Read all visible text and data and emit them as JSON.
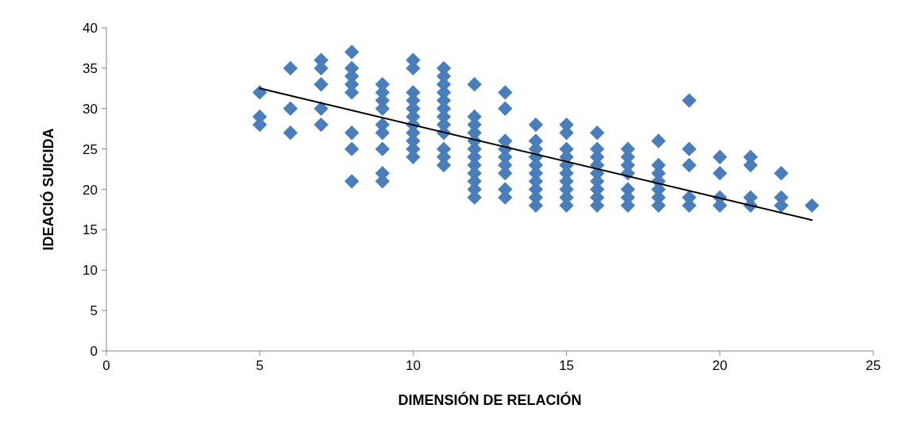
{
  "chart_data": {
    "type": "scatter",
    "xlabel": "DIMENSIÓN DE RELACIÓN",
    "ylabel": "IDEACIÓ SUICIDA",
    "xlim": [
      0,
      25
    ],
    "xticks": [
      0,
      5,
      10,
      15,
      20,
      25
    ],
    "ylim": [
      0,
      40
    ],
    "yticks": [
      0,
      5,
      10,
      15,
      20,
      25,
      30,
      35,
      40
    ],
    "grid": false,
    "marker": "diamond",
    "series": [
      {
        "color": "#4a7ebb",
        "x": [
          5,
          5,
          5,
          6,
          6,
          6,
          7,
          7,
          7,
          7,
          7,
          8,
          8,
          8,
          8,
          8,
          8,
          8,
          8,
          9,
          9,
          9,
          9,
          9,
          9,
          9,
          9,
          9,
          10,
          10,
          10,
          10,
          10,
          10,
          10,
          10,
          10,
          10,
          10,
          11,
          11,
          11,
          11,
          11,
          11,
          11,
          11,
          11,
          11,
          11,
          11,
          12,
          12,
          12,
          12,
          12,
          12,
          12,
          12,
          12,
          12,
          12,
          12,
          13,
          13,
          13,
          13,
          13,
          13,
          13,
          13,
          13,
          14,
          14,
          14,
          14,
          14,
          14,
          14,
          14,
          14,
          14,
          15,
          15,
          15,
          15,
          15,
          15,
          15,
          15,
          15,
          15,
          16,
          16,
          16,
          16,
          16,
          16,
          16,
          16,
          16,
          17,
          17,
          17,
          17,
          17,
          17,
          17,
          18,
          18,
          18,
          18,
          18,
          18,
          18,
          19,
          19,
          19,
          19,
          19,
          20,
          20,
          20,
          20,
          21,
          21,
          21,
          21,
          22,
          22,
          22,
          23
        ],
        "values": [
          32,
          29,
          28,
          35,
          30,
          27,
          36,
          35,
          33,
          30,
          28,
          37,
          35,
          34,
          33,
          32,
          27,
          25,
          21,
          33,
          32,
          31,
          30,
          28,
          27,
          25,
          22,
          21,
          36,
          35,
          32,
          31,
          30,
          29,
          28,
          27,
          26,
          25,
          24,
          35,
          34,
          33,
          32,
          31,
          30,
          29,
          28,
          27,
          25,
          24,
          23,
          33,
          29,
          28,
          27,
          26,
          25,
          24,
          23,
          22,
          21,
          20,
          19,
          32,
          30,
          26,
          25,
          24,
          23,
          22,
          20,
          19,
          28,
          26,
          25,
          24,
          23,
          22,
          21,
          20,
          19,
          18,
          28,
          27,
          25,
          24,
          23,
          22,
          21,
          20,
          19,
          18,
          27,
          25,
          24,
          23,
          22,
          21,
          20,
          19,
          18,
          25,
          24,
          23,
          22,
          20,
          19,
          18,
          26,
          23,
          22,
          21,
          20,
          19,
          18,
          31,
          25,
          23,
          19,
          18,
          24,
          22,
          19,
          18,
          24,
          23,
          19,
          18,
          22,
          19,
          18,
          18
        ]
      },
      {
        "type": "line",
        "color": "#000000",
        "x": [
          5,
          23
        ],
        "values": [
          32.5,
          16.2
        ],
        "marker": "none",
        "line_style": "solid"
      }
    ]
  }
}
